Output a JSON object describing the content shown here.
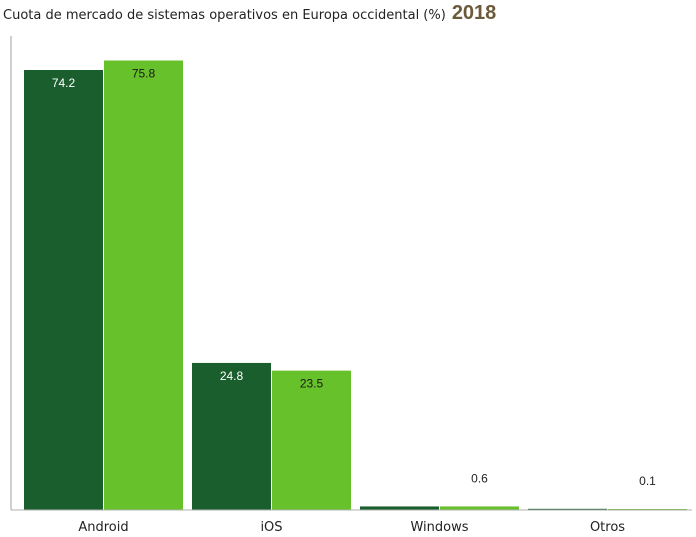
{
  "chart_data": {
    "type": "bar",
    "title": "Cuota de mercado de sistemas operativos en Europa occidental (%)",
    "subtitle": "2018",
    "xlabel": "",
    "ylabel": "",
    "ylim": [
      0,
      80
    ],
    "grid": false,
    "legend": "none",
    "categories": [
      "Android",
      "iOS",
      "Windows",
      "Otros"
    ],
    "series": [
      {
        "color": "#1a5e2e",
        "values": [
          74.2,
          24.8,
          null,
          null
        ]
      },
      {
        "color": "#66c12a",
        "values": [
          75.8,
          23.5,
          0.6,
          0.1
        ]
      }
    ],
    "approx_values": [
      {
        "series": 0,
        "category": 2,
        "value": 0.6
      },
      {
        "series": 0,
        "category": 3,
        "value": 0.2
      },
      {
        "series": 1,
        "category": 2,
        "value": 0.5
      }
    ]
  }
}
